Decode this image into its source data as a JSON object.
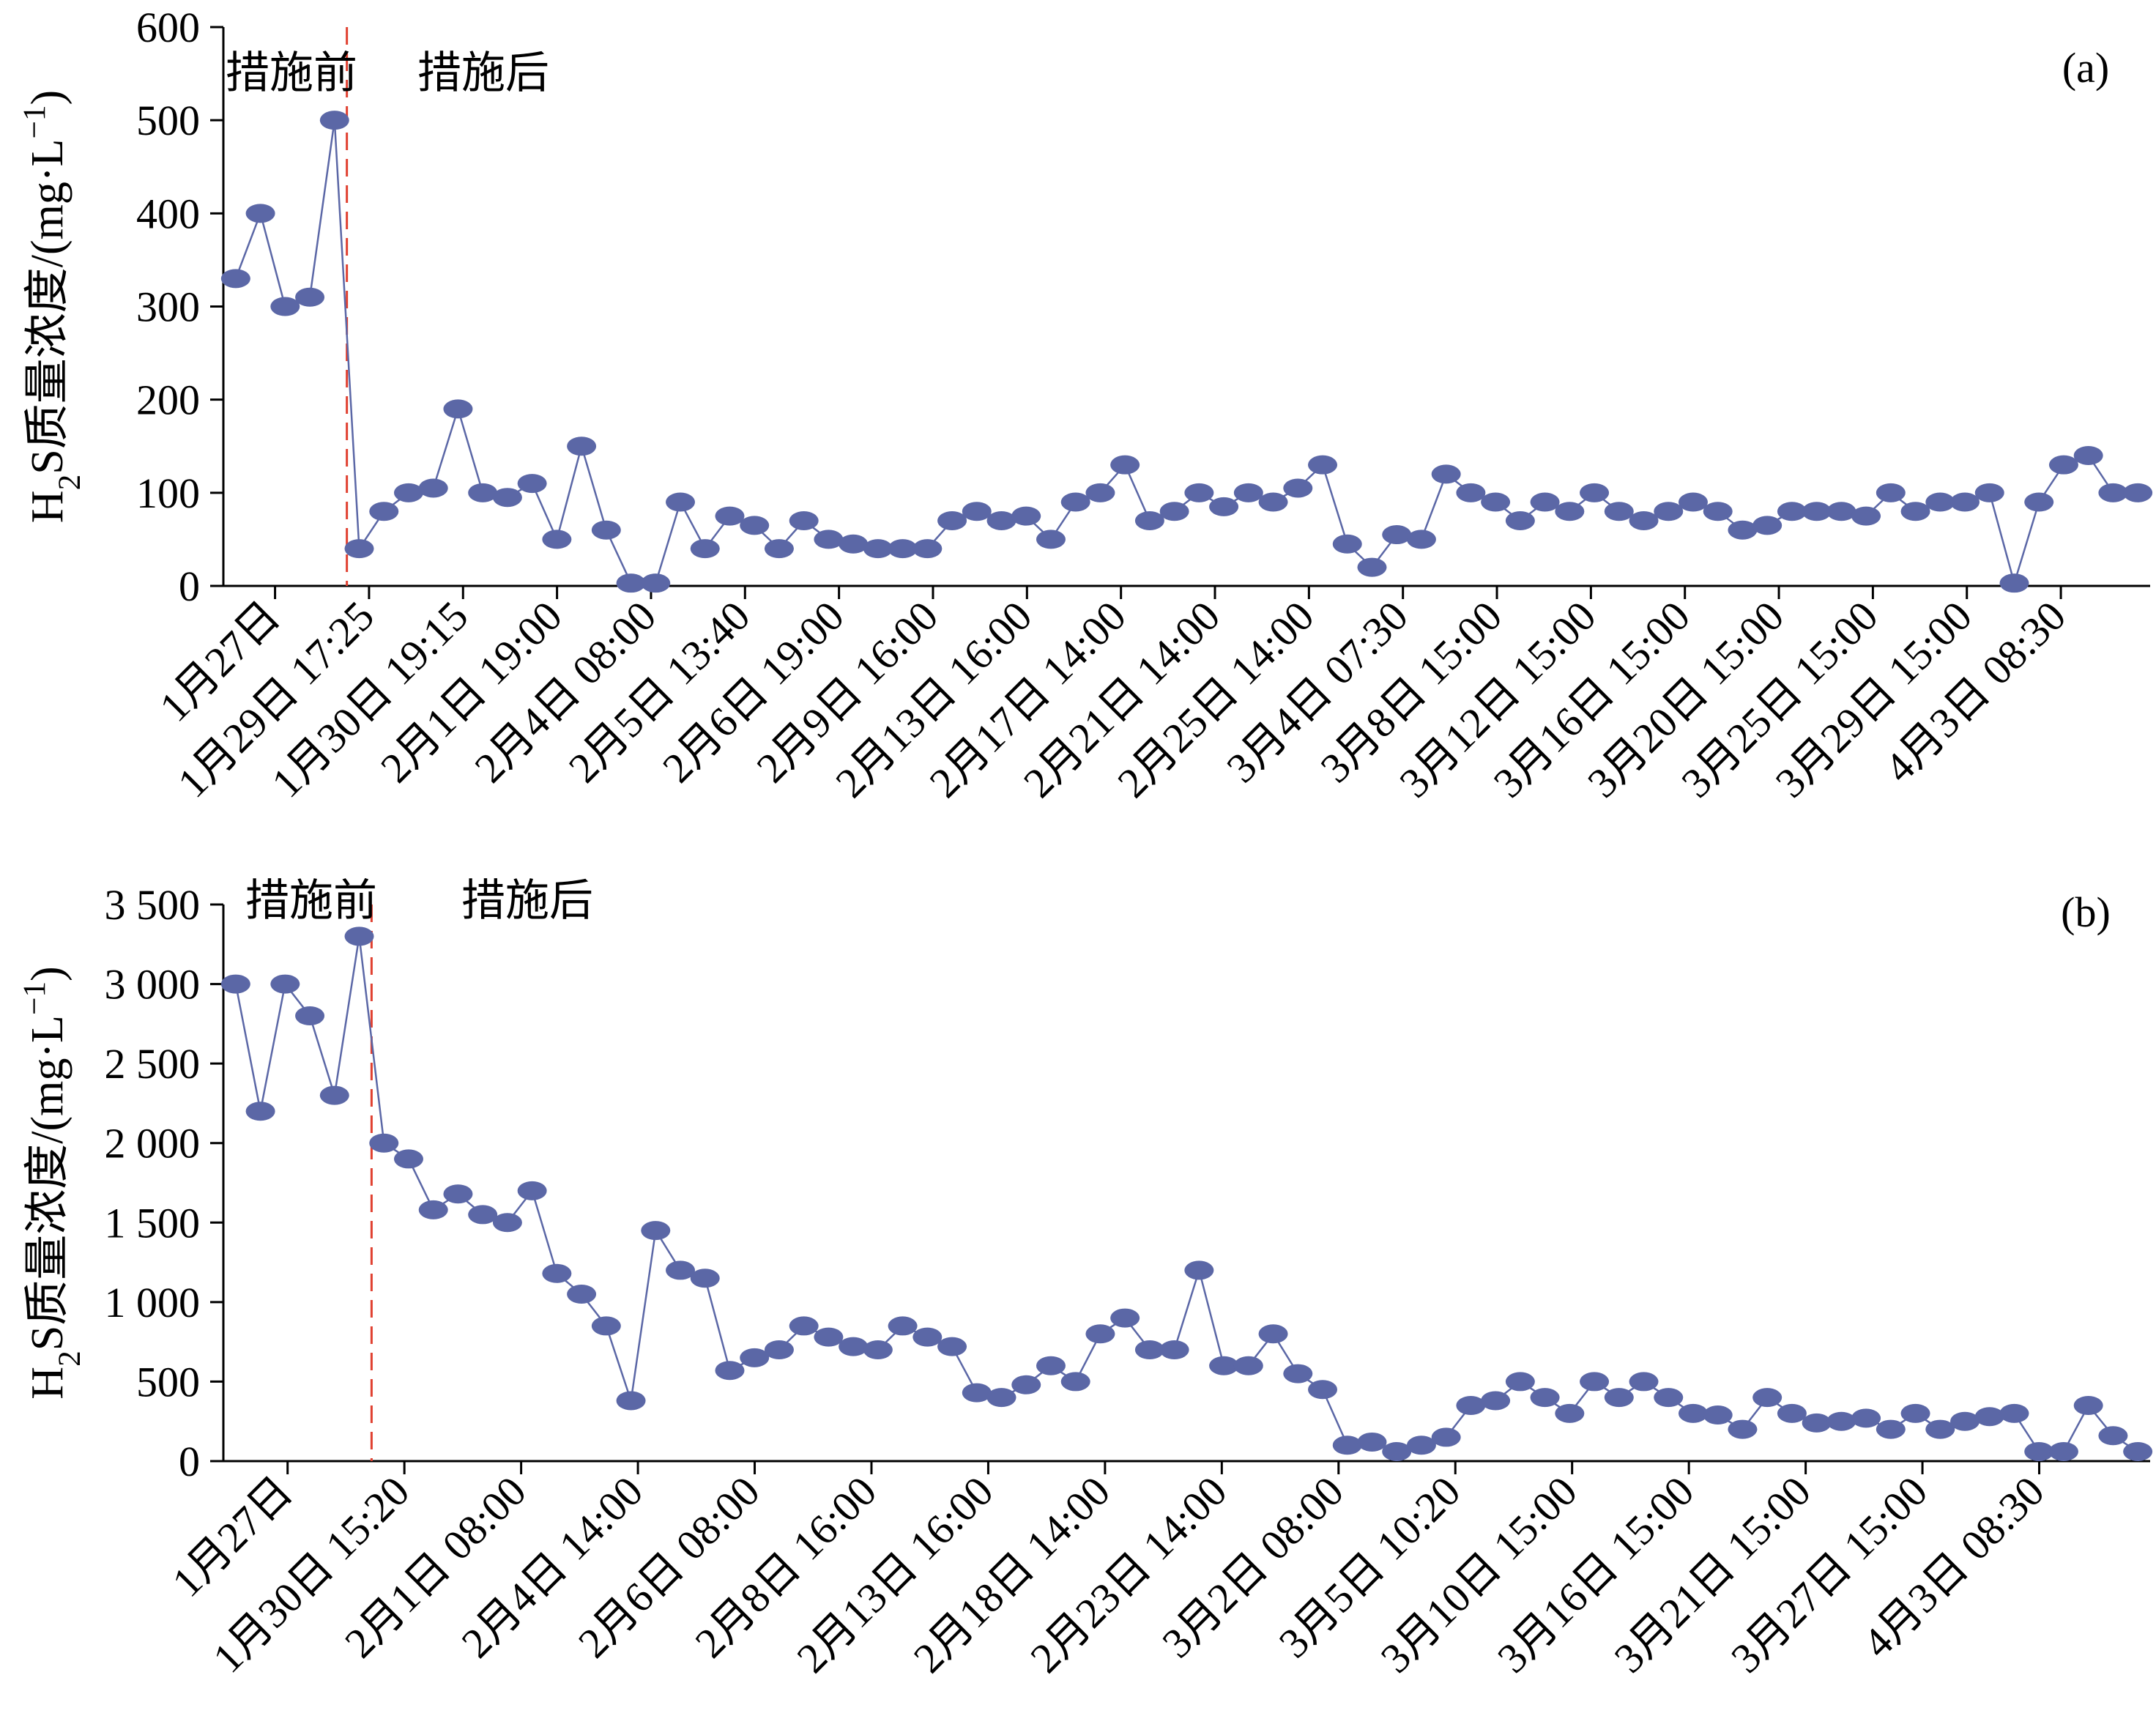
{
  "colors": {
    "series": "#5b67a6",
    "axis": "#000000",
    "divider": "#e04030"
  },
  "chart_data": [
    {
      "type": "line",
      "panel_label": "(a)",
      "ylabel_html": "H<tspan baseline-shift='sub' font-size='0.7em'>2</tspan>S质量浓度/(mg·L<tspan baseline-shift='super' font-size='0.7em'>−1</tspan>)",
      "ylabel": "H2S质量浓度/(mg·L−1)",
      "ylim": [
        0,
        600
      ],
      "y_ticks": [
        0,
        100,
        200,
        300,
        400,
        500,
        600
      ],
      "y_tick_labels": [
        "0",
        "100",
        "200",
        "300",
        "400",
        "500",
        "600"
      ],
      "phase_labels": {
        "before": "措施前",
        "after": "措施后"
      },
      "divider_after_index": 4,
      "x_tick_labels": [
        "1月27日",
        "1月29日 17:25",
        "1月30日 19:15",
        "2月1日 19:00",
        "2月4日 08:00",
        "2月5日 13:40",
        "2月6日 19:00",
        "2月9日 16:00",
        "2月13日 16:00",
        "2月17日 14:00",
        "2月21日 14:00",
        "2月25日 14:00",
        "3月4日 07:30",
        "3月8日 15:00",
        "3月12日 15:00",
        "3月16日 15:00",
        "3月20日 15:00",
        "3月25日 15:00",
        "3月29日 15:00",
        "4月3日 08:30"
      ],
      "values": [
        330,
        400,
        300,
        310,
        500,
        40,
        80,
        100,
        105,
        190,
        100,
        95,
        110,
        50,
        150,
        60,
        3,
        3,
        90,
        40,
        75,
        65,
        40,
        70,
        50,
        45,
        40,
        40,
        40,
        70,
        80,
        70,
        75,
        50,
        90,
        100,
        130,
        70,
        80,
        100,
        85,
        100,
        90,
        105,
        130,
        45,
        20,
        55,
        50,
        120,
        100,
        90,
        70,
        90,
        80,
        100,
        80,
        70,
        80,
        90,
        80,
        60,
        65,
        80,
        80,
        80,
        75,
        100,
        80,
        90,
        90,
        100,
        3,
        90,
        130,
        140,
        100,
        100
      ]
    },
    {
      "type": "line",
      "panel_label": "(b)",
      "ylabel_html": "H<tspan baseline-shift='sub' font-size='0.7em'>2</tspan>S质量浓度/(mg·L<tspan baseline-shift='super' font-size='0.7em'>−1</tspan>)",
      "ylabel": "H2S质量浓度/(mg·L−1)",
      "ylim": [
        0,
        3500
      ],
      "y_ticks": [
        0,
        500,
        1000,
        1500,
        2000,
        2500,
        3000,
        3500
      ],
      "y_tick_labels": [
        "0",
        "500",
        "1 000",
        "1 500",
        "2 000",
        "2 500",
        "3 000",
        "3 500"
      ],
      "phase_labels": {
        "before": "措施前",
        "after": "措施后"
      },
      "divider_after_index": 5,
      "x_tick_labels": [
        "1月27日",
        "1月30日 15:20",
        "2月1日 08:00",
        "2月4日 14:00",
        "2月6日 08:00",
        "2月8日 16:00",
        "2月13日 16:00",
        "2月18日 14:00",
        "2月23日 14:00",
        "3月2日 08:00",
        "3月5日 10:20",
        "3月10日 15:00",
        "3月16日 15:00",
        "3月21日 15:00",
        "3月27日 15:00",
        "4月3日 08:30"
      ],
      "values": [
        3000,
        2200,
        3000,
        2800,
        2300,
        3300,
        2000,
        1900,
        1580,
        1680,
        1550,
        1500,
        1700,
        1180,
        1050,
        850,
        380,
        1450,
        1200,
        1150,
        570,
        650,
        700,
        850,
        780,
        720,
        700,
        850,
        780,
        720,
        430,
        400,
        480,
        600,
        500,
        800,
        900,
        700,
        700,
        1200,
        600,
        600,
        800,
        550,
        450,
        100,
        120,
        60,
        100,
        150,
        350,
        380,
        500,
        400,
        300,
        500,
        400,
        500,
        400,
        300,
        290,
        200,
        400,
        300,
        240,
        250,
        270,
        200,
        300,
        200,
        250,
        280,
        300,
        60,
        60,
        350,
        160,
        60
      ]
    }
  ]
}
